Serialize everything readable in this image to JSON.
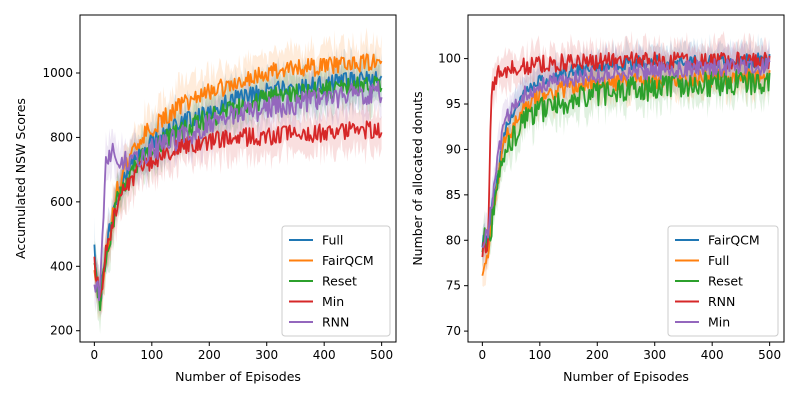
{
  "chart_data": [
    {
      "type": "line",
      "xlabel": "Number of Episodes",
      "ylabel": "Accumulated NSW Scores",
      "xlim": [
        -25,
        525
      ],
      "ylim": [
        165,
        1180
      ],
      "xticks": [
        0,
        100,
        200,
        300,
        400,
        500
      ],
      "yticks": [
        200,
        400,
        600,
        800,
        1000
      ],
      "legend_position": "lower-right",
      "shaded_band": true,
      "series": [
        {
          "name": "Full",
          "color": "#1f77b4",
          "x": [
            0,
            10,
            20,
            40,
            60,
            80,
            100,
            150,
            200,
            250,
            300,
            350,
            400,
            450,
            500
          ],
          "y": [
            460,
            280,
            460,
            620,
            700,
            750,
            790,
            840,
            880,
            920,
            940,
            955,
            965,
            975,
            990
          ],
          "noise": 18
        },
        {
          "name": "FairQCM",
          "color": "#ff7f0e",
          "x": [
            0,
            10,
            20,
            40,
            60,
            80,
            100,
            150,
            200,
            250,
            300,
            350,
            400,
            450,
            500
          ],
          "y": [
            380,
            300,
            430,
            640,
            730,
            790,
            830,
            900,
            940,
            975,
            1000,
            1015,
            1020,
            1030,
            1040
          ],
          "noise": 18
        },
        {
          "name": "Reset",
          "color": "#2ca02c",
          "x": [
            0,
            10,
            20,
            40,
            60,
            80,
            100,
            150,
            200,
            250,
            300,
            350,
            400,
            450,
            500
          ],
          "y": [
            400,
            290,
            420,
            600,
            680,
            730,
            770,
            820,
            860,
            890,
            920,
            935,
            945,
            955,
            960
          ],
          "noise": 20
        },
        {
          "name": "Min",
          "color": "#d62728",
          "x": [
            0,
            10,
            20,
            40,
            60,
            80,
            100,
            150,
            200,
            250,
            300,
            350,
            400,
            450,
            500
          ],
          "y": [
            420,
            285,
            440,
            600,
            660,
            700,
            730,
            770,
            790,
            800,
            805,
            810,
            815,
            820,
            825
          ],
          "noise": 18
        },
        {
          "name": "RNN",
          "color": "#9467bd",
          "x": [
            0,
            10,
            20,
            30,
            40,
            60,
            80,
            100,
            150,
            200,
            250,
            300,
            350,
            400,
            450,
            500
          ],
          "y": [
            330,
            320,
            740,
            760,
            740,
            730,
            740,
            760,
            800,
            840,
            870,
            890,
            905,
            920,
            935,
            940
          ],
          "noise": 22
        }
      ]
    },
    {
      "type": "line",
      "xlabel": "Number of Episodes",
      "ylabel": "Number of allocated donuts",
      "xlim": [
        -25,
        525
      ],
      "ylim": [
        68.8,
        104.8
      ],
      "xticks": [
        0,
        100,
        200,
        300,
        400,
        500
      ],
      "yticks": [
        70,
        75,
        80,
        85,
        90,
        95,
        100
      ],
      "legend_position": "lower-right",
      "shaded_band": true,
      "series": [
        {
          "name": "FairQCM",
          "color": "#1f77b4",
          "x": [
            0,
            10,
            20,
            30,
            40,
            60,
            80,
            100,
            150,
            200,
            300,
            400,
            500
          ],
          "y": [
            80,
            80.5,
            85,
            89,
            92,
            95,
            96.5,
            97.5,
            98.5,
            99.2,
            99.6,
            99.7,
            99.8
          ],
          "noise": 0.5
        },
        {
          "name": "Full",
          "color": "#ff7f0e",
          "x": [
            0,
            10,
            20,
            30,
            40,
            60,
            80,
            100,
            150,
            200,
            300,
            400,
            500
          ],
          "y": [
            77,
            79,
            84,
            88,
            91,
            93.5,
            95,
            96,
            96.8,
            97.2,
            97.6,
            97.8,
            98
          ],
          "noise": 0.6
        },
        {
          "name": "Reset",
          "color": "#2ca02c",
          "x": [
            0,
            10,
            20,
            30,
            40,
            60,
            80,
            100,
            150,
            200,
            300,
            400,
            500
          ],
          "y": [
            80,
            80,
            83,
            87,
            90,
            92,
            93.5,
            94.3,
            95.3,
            96.2,
            96.8,
            97.3,
            97.5
          ],
          "noise": 0.9
        },
        {
          "name": "RNN",
          "color": "#d62728",
          "x": [
            0,
            10,
            15,
            20,
            30,
            40,
            60,
            80,
            100,
            150,
            200,
            300,
            400,
            500
          ],
          "y": [
            79,
            80,
            95,
            97.5,
            98.5,
            98.8,
            99,
            99.2,
            99.4,
            99.6,
            99.7,
            99.8,
            99.8,
            99.8
          ],
          "noise": 0.6
        },
        {
          "name": "Min",
          "color": "#9467bd",
          "x": [
            0,
            10,
            20,
            30,
            40,
            60,
            80,
            100,
            150,
            200,
            300,
            400,
            500
          ],
          "y": [
            80,
            80.5,
            86,
            90,
            93,
            95.5,
            96.5,
            97,
            97.8,
            98.3,
            98.7,
            99,
            99.2
          ],
          "noise": 0.6
        }
      ]
    }
  ]
}
